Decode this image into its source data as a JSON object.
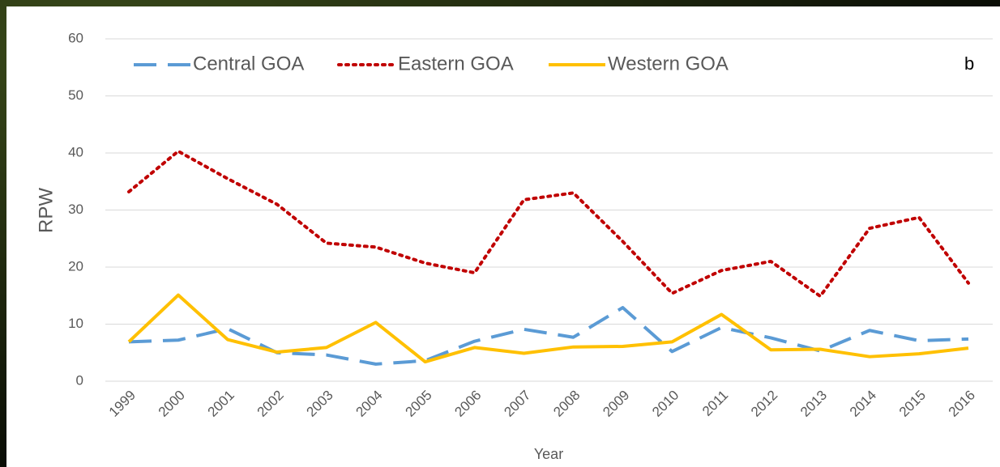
{
  "chart_data": {
    "type": "line",
    "y_label": "RPW",
    "x_label": "Year",
    "annotation": "b",
    "categories": [
      "1999",
      "2000",
      "2001",
      "2002",
      "2003",
      "2004",
      "2005",
      "2006",
      "2007",
      "2008",
      "2009",
      "2010",
      "2011",
      "2012",
      "2013",
      "2014",
      "2015",
      "2016"
    ],
    "series": [
      {
        "name": "Central GOA",
        "color": "#5b9bd5",
        "style": "dashed",
        "values": [
          6.9,
          7.2,
          9.2,
          5.0,
          4.6,
          3.0,
          3.6,
          7.0,
          9.1,
          7.7,
          12.9,
          5.2,
          9.4,
          7.6,
          5.3,
          8.9,
          7.1,
          7.4
        ]
      },
      {
        "name": "Eastern GOA",
        "color": "#c00000",
        "style": "dotted",
        "values": [
          33.2,
          40.3,
          35.5,
          31.0,
          24.2,
          23.5,
          20.7,
          19.0,
          31.8,
          33.0,
          24.5,
          15.4,
          19.4,
          21.0,
          14.9,
          26.8,
          28.7,
          17.2
        ]
      },
      {
        "name": "Western GOA",
        "color": "#ffc000",
        "style": "solid",
        "values": [
          6.9,
          15.1,
          7.3,
          5.1,
          5.9,
          10.3,
          3.4,
          5.9,
          4.9,
          6.0,
          6.1,
          6.9,
          11.7,
          5.5,
          5.6,
          4.3,
          4.8,
          5.8
        ]
      }
    ],
    "ylim": [
      0,
      60
    ],
    "yticks": [
      0,
      10,
      20,
      30,
      40,
      50,
      60
    ],
    "grid": true,
    "legend": "top"
  }
}
